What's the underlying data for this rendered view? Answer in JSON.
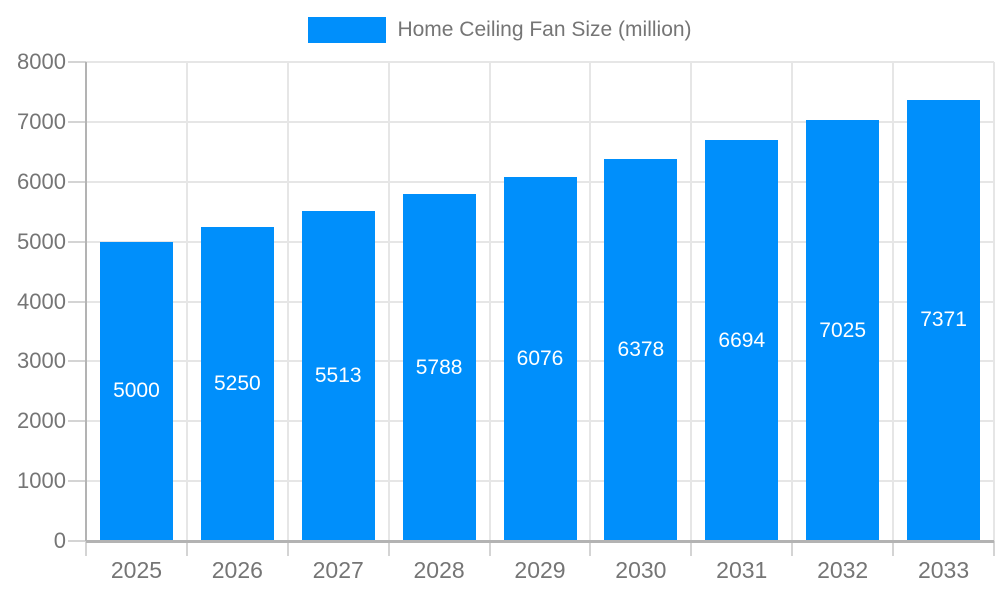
{
  "chart_data": {
    "type": "bar",
    "title": "Home Ceiling Fan Size (million)",
    "categories": [
      "2025",
      "2026",
      "2027",
      "2028",
      "2029",
      "2030",
      "2031",
      "2032",
      "2033"
    ],
    "values": [
      5000,
      5250,
      5513,
      5788,
      6076,
      6378,
      6694,
      7025,
      7371
    ],
    "xlabel": "",
    "ylabel": "",
    "ylim": [
      0,
      8000
    ],
    "y_ticks": [
      0,
      1000,
      2000,
      3000,
      4000,
      5000,
      6000,
      7000,
      8000
    ],
    "grid": true,
    "legend_position": "top-center",
    "value_labels": "inside-center"
  },
  "colors": {
    "bar": "#008FFB",
    "grid": "#e6e6e6",
    "axis": "#b3b3b3",
    "tick": "#d4d4d4",
    "text": "#757575",
    "value_label": "#ffffff"
  }
}
